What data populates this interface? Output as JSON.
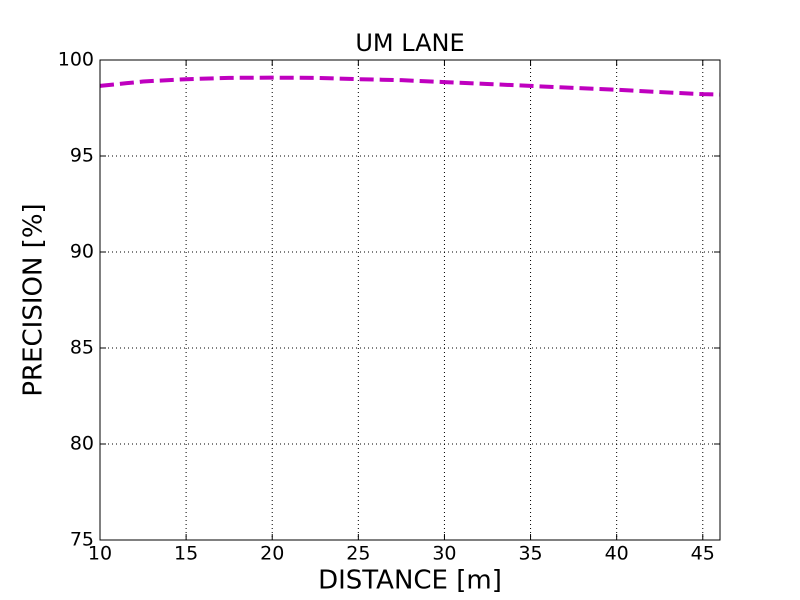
{
  "chart_data": {
    "type": "line",
    "title": "UM LANE",
    "x_label": "DISTANCE [m]",
    "y_label": "PRECISION [%]",
    "x": [
      10,
      12.5,
      15,
      17.5,
      20,
      22.5,
      25,
      27.5,
      30,
      32.5,
      35,
      37.5,
      40,
      42.5,
      45,
      46
    ],
    "series": [
      {
        "name": "precision",
        "color": "#bf00bf",
        "values": [
          98.65,
          98.88,
          99.0,
          99.07,
          99.08,
          99.07,
          99.0,
          98.95,
          98.85,
          98.75,
          98.65,
          98.55,
          98.45,
          98.33,
          98.22,
          98.2
        ]
      }
    ],
    "xlim": [
      10,
      46
    ],
    "xticks": [
      10,
      15,
      20,
      25,
      30,
      35,
      40,
      45
    ],
    "ylim": [
      75,
      100
    ],
    "yticks": [
      75,
      80,
      85,
      90,
      95,
      100
    ],
    "grid": true
  }
}
